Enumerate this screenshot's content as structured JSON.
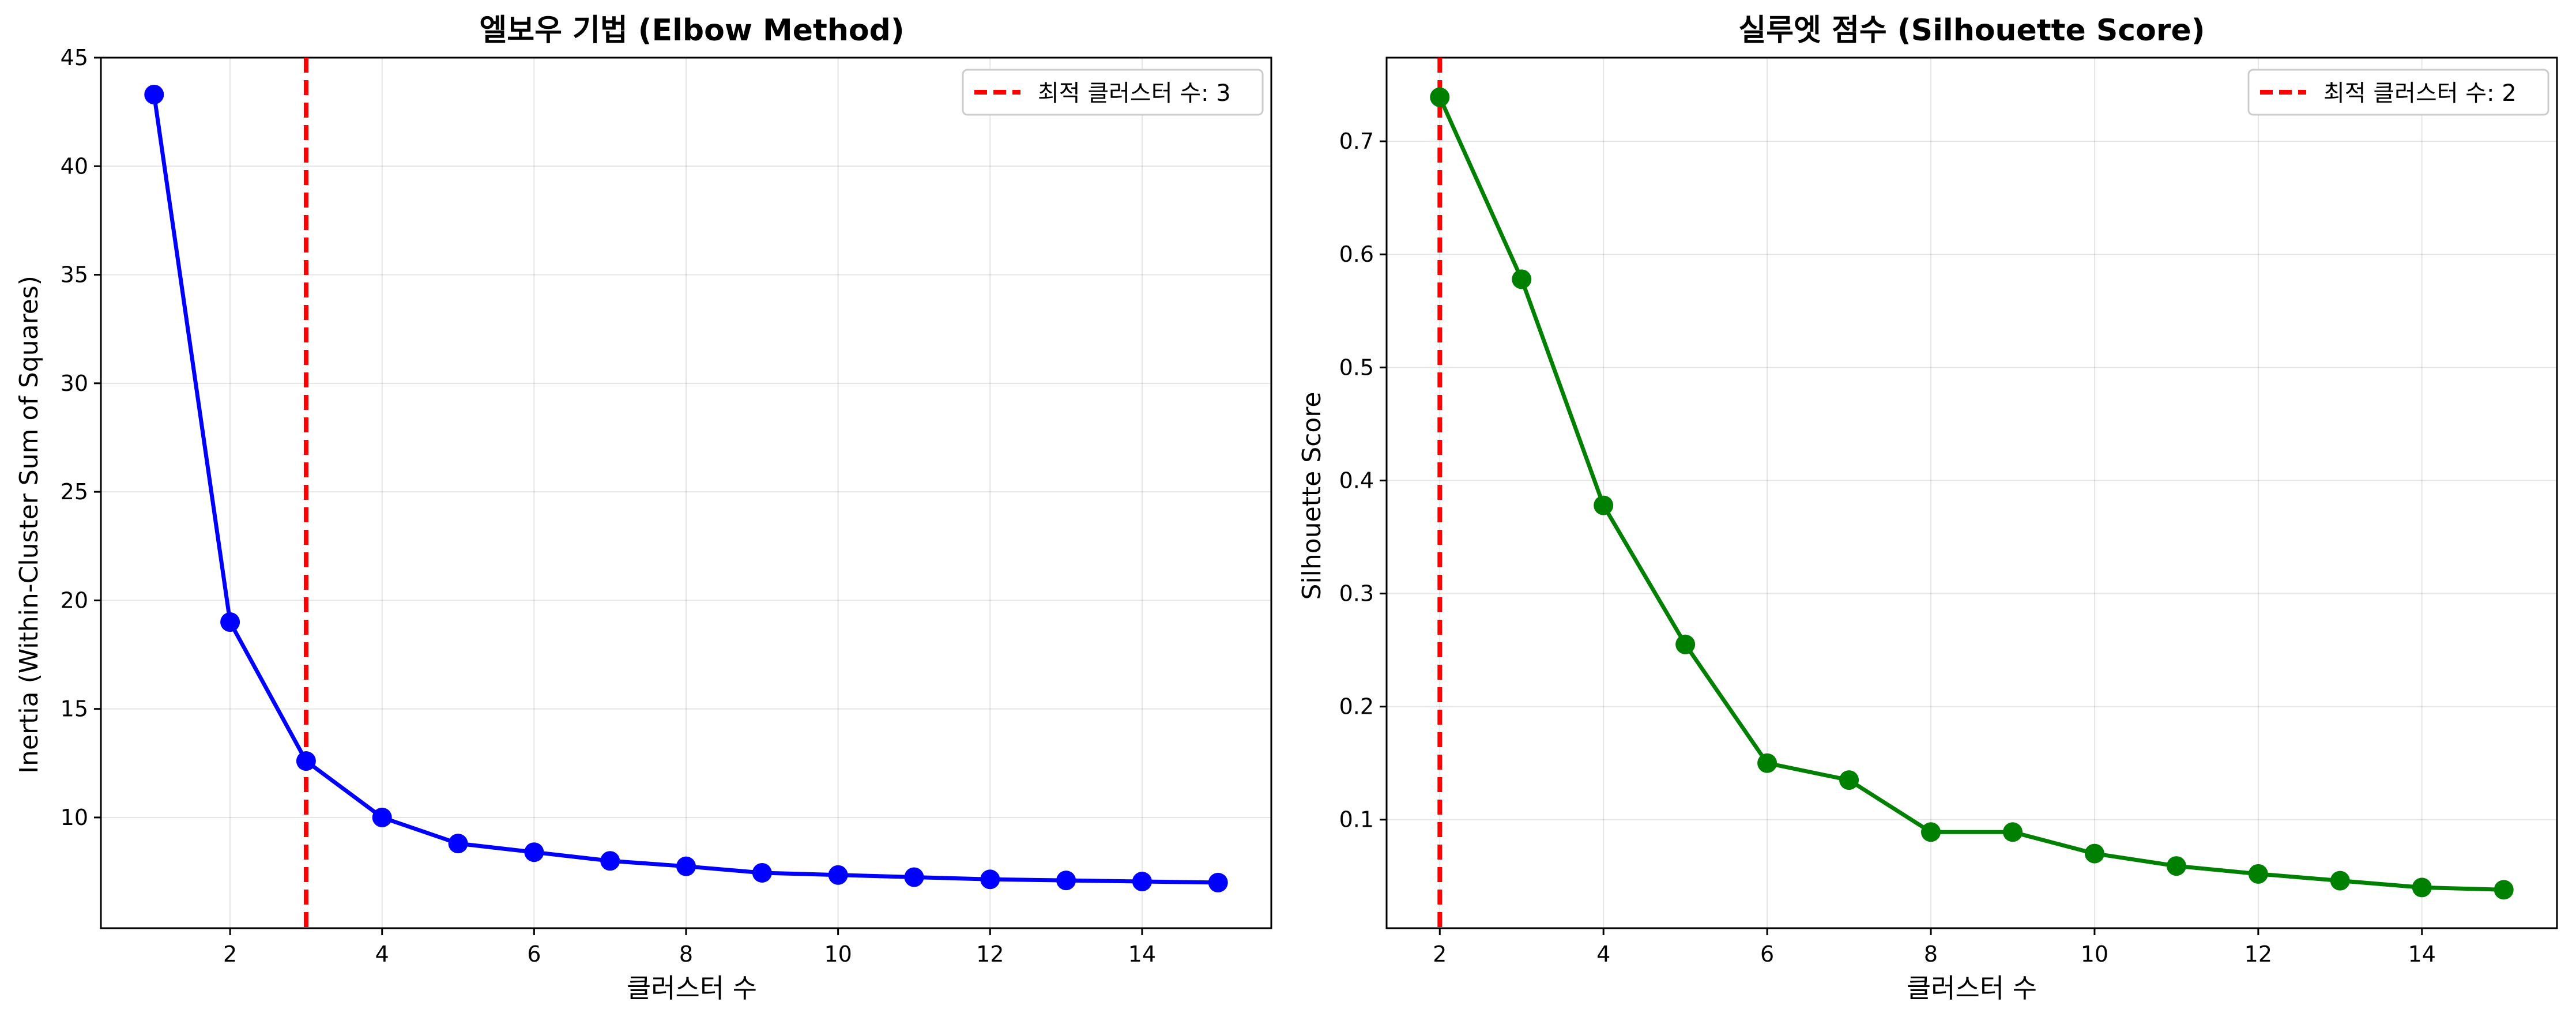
{
  "chart_data": [
    {
      "type": "line",
      "title": "엘보우 기법 (Elbow Method)",
      "xlabel": "클러스터 수",
      "ylabel": "Inertia (Within-Cluster Sum of Squares)",
      "x": [
        1,
        2,
        3,
        4,
        5,
        6,
        7,
        8,
        9,
        10,
        11,
        12,
        13,
        14,
        15
      ],
      "series": [
        {
          "color": "#0000ff",
          "values": [
            43.3,
            19.0,
            12.6,
            10.0,
            8.8,
            8.4,
            8.0,
            7.75,
            7.45,
            7.35,
            7.25,
            7.15,
            7.1,
            7.05,
            7.0
          ]
        }
      ],
      "xlim": [
        0.3,
        15.7
      ],
      "ylim": [
        4.9,
        45.0
      ],
      "xticks": [
        2,
        4,
        6,
        8,
        10,
        12,
        14
      ],
      "yticks": [
        10,
        15,
        20,
        25,
        30,
        35,
        40,
        45
      ],
      "vline": {
        "x": 3,
        "color": "#ff0000",
        "style": "dashed"
      },
      "legend": {
        "position": "top-right",
        "label": "최적 클러스터 수: 3"
      },
      "grid": true
    },
    {
      "type": "line",
      "title": "실루엣 점수 (Silhouette Score)",
      "xlabel": "클러스터 수",
      "ylabel": "Silhouette Score",
      "x": [
        2,
        3,
        4,
        5,
        6,
        7,
        8,
        9,
        10,
        11,
        12,
        13,
        14,
        15
      ],
      "series": [
        {
          "color": "#008000",
          "values": [
            0.739,
            0.578,
            0.378,
            0.255,
            0.15,
            0.135,
            0.089,
            0.089,
            0.07,
            0.059,
            0.052,
            0.046,
            0.04,
            0.038
          ]
        }
      ],
      "xlim": [
        1.35,
        15.65
      ],
      "ylim": [
        0.004,
        0.774
      ],
      "xticks": [
        2,
        4,
        6,
        8,
        10,
        12,
        14
      ],
      "yticks": [
        0.1,
        0.2,
        0.3,
        0.4,
        0.5,
        0.6,
        0.7
      ],
      "vline": {
        "x": 2,
        "color": "#ff0000",
        "style": "dashed"
      },
      "legend": {
        "position": "top-right",
        "label": "최적 클러스터 수: 2"
      },
      "grid": true
    }
  ]
}
